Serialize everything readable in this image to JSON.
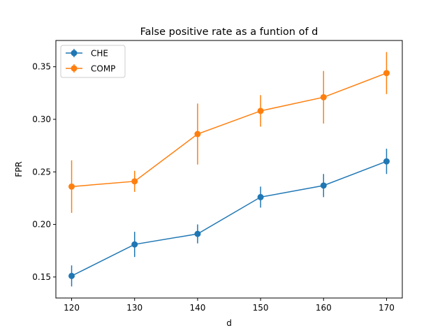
{
  "chart_data": {
    "type": "line",
    "title": "False positive rate as a funtion of d",
    "xlabel": "d",
    "ylabel": "FPR",
    "x": [
      120,
      130,
      140,
      150,
      160,
      170
    ],
    "xticks": [
      "120",
      "130",
      "140",
      "150",
      "160",
      "170"
    ],
    "yticks": [
      "0.15",
      "0.20",
      "0.25",
      "0.30",
      "0.35"
    ],
    "xlim": [
      117.5,
      172.5
    ],
    "ylim": [
      0.13,
      0.375
    ],
    "grid": false,
    "legend_position": "top-left",
    "series": [
      {
        "name": "CHE",
        "color": "#1f77b4",
        "values": [
          0.151,
          0.181,
          0.191,
          0.226,
          0.237,
          0.26
        ],
        "errors": [
          0.01,
          0.012,
          0.009,
          0.01,
          0.011,
          0.012
        ]
      },
      {
        "name": "COMP",
        "color": "#ff7f0e",
        "values": [
          0.236,
          0.241,
          0.286,
          0.308,
          0.321,
          0.344
        ],
        "errors": [
          0.025,
          0.01,
          0.029,
          0.015,
          0.025,
          0.02
        ]
      }
    ]
  }
}
